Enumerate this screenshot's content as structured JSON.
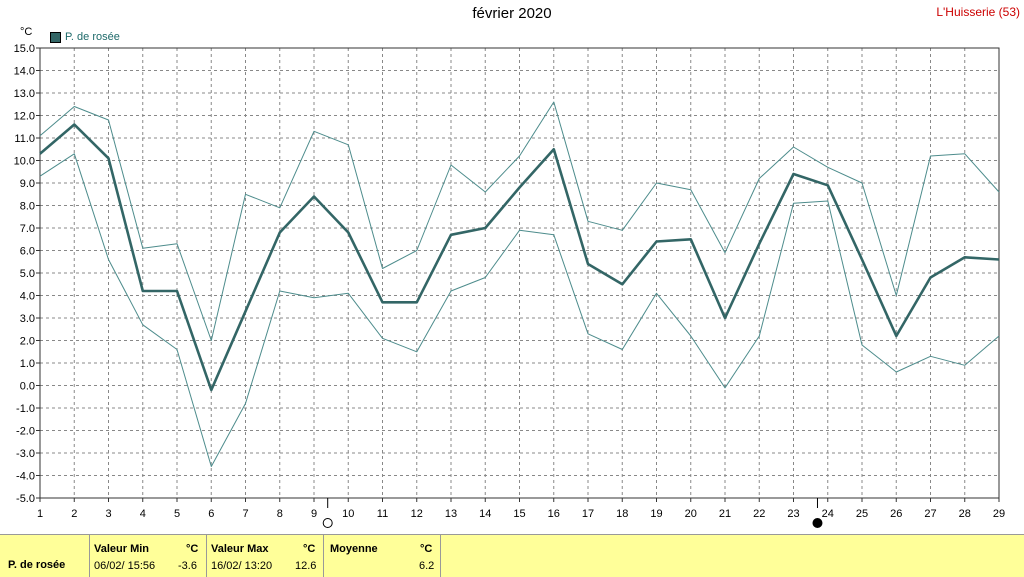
{
  "chart_data": {
    "type": "line",
    "title": "février 2020",
    "station": "L'Huisserie (53)",
    "ylabel": "°C",
    "ylim": [
      -5,
      15
    ],
    "yticks": [
      "15.0",
      "14.0",
      "13.0",
      "12.0",
      "11.0",
      "10.0",
      "9.0",
      "8.0",
      "7.0",
      "6.0",
      "5.0",
      "4.0",
      "3.0",
      "2.0",
      "1.0",
      "0.0",
      "-1.0",
      "-2.0",
      "-3.0",
      "-4.0",
      "-5.0"
    ],
    "x": [
      1,
      2,
      3,
      4,
      5,
      6,
      7,
      8,
      9,
      10,
      11,
      12,
      13,
      14,
      15,
      16,
      17,
      18,
      19,
      20,
      21,
      22,
      23,
      24,
      25,
      26,
      27,
      28,
      29
    ],
    "xticks": [
      "1",
      "2",
      "3",
      "4",
      "5",
      "6",
      "7",
      "8",
      "9",
      "10",
      "11",
      "12",
      "13",
      "14",
      "15",
      "16",
      "17",
      "18",
      "19",
      "20",
      "21",
      "22",
      "23",
      "24",
      "25",
      "26",
      "27",
      "28",
      "29"
    ],
    "grid": true,
    "legend": "P. de rosée",
    "series": [
      {
        "name": "P. de rosée",
        "role": "mean",
        "color": "#336666",
        "values": [
          10.3,
          11.6,
          10.1,
          4.2,
          4.2,
          -0.2,
          3.3,
          6.8,
          8.4,
          6.8,
          3.7,
          3.7,
          6.7,
          7.0,
          8.8,
          10.5,
          5.4,
          4.5,
          6.4,
          6.5,
          3.0,
          6.3,
          9.4,
          8.9,
          5.6,
          2.2,
          4.8,
          5.7,
          5.6
        ]
      },
      {
        "role": "max",
        "color": "#4d8c8c",
        "values": [
          11.1,
          12.4,
          11.8,
          6.1,
          6.3,
          2.0,
          8.5,
          7.9,
          11.3,
          10.7,
          5.2,
          6.0,
          9.8,
          8.6,
          10.2,
          12.6,
          7.3,
          6.9,
          9.0,
          8.7,
          5.9,
          9.2,
          10.6,
          9.7,
          9.0,
          4.0,
          10.2,
          10.3,
          8.6
        ]
      },
      {
        "role": "min",
        "color": "#4d8c8c",
        "values": [
          9.3,
          10.3,
          5.6,
          2.7,
          1.6,
          -3.6,
          -0.8,
          4.2,
          3.9,
          4.1,
          2.1,
          1.5,
          4.2,
          4.8,
          6.9,
          6.7,
          2.3,
          1.6,
          4.1,
          2.2,
          -0.1,
          2.2,
          8.1,
          8.2,
          1.8,
          0.6,
          1.3,
          0.9,
          2.2
        ]
      }
    ],
    "moon_phases": [
      {
        "day": 9.4,
        "symbol": "○"
      },
      {
        "day": 23.7,
        "symbol": "●"
      }
    ]
  },
  "footer": {
    "param_label": "P. de rosée",
    "min_label": "Valeur Min",
    "min_unit": "°C",
    "min_datetime": "06/02/  15:56",
    "min_value": "-3.6",
    "max_label": "Valeur Max",
    "max_unit": "°C",
    "max_datetime": "16/02/  13:20",
    "max_value": "12.6",
    "avg_label": "Moyenne",
    "avg_unit": "°C",
    "avg_value": "6.2"
  }
}
